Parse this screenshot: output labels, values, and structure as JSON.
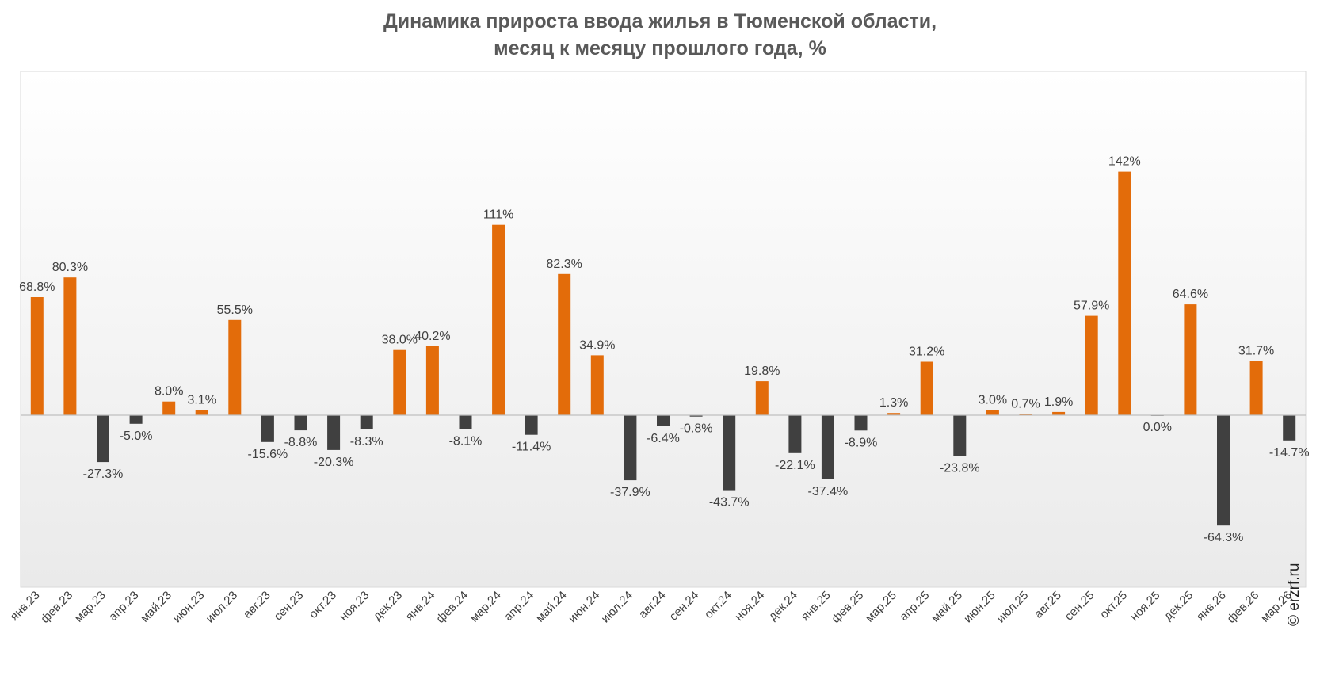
{
  "title_line1": "Динамика прироста ввода жилья в Тюменской области,",
  "title_line2": "месяц к месяцу прошлого года, %",
  "credit": "© erzrf.ru",
  "colors": {
    "positive": "#e36c0a",
    "negative": "#404040",
    "text": "#404040"
  },
  "chart_data": {
    "type": "bar",
    "categories": [
      "янв.23",
      "фев.23",
      "мар.23",
      "апр.23",
      "май.23",
      "июн.23",
      "июл.23",
      "авг.23",
      "сен.23",
      "окт.23",
      "ноя.23",
      "дек.23",
      "янв.24",
      "фев.24",
      "мар.24",
      "апр.24",
      "май.24",
      "июн.24",
      "июл.24",
      "авг.24",
      "сен.24",
      "окт.24",
      "ноя.24",
      "дек.24",
      "янв.25",
      "фев.25",
      "мар.25",
      "апр.25",
      "май.25",
      "июн.25",
      "июл.25",
      "авг.25",
      "сен.25",
      "окт.25",
      "ноя.25",
      "дек.25",
      "янв.26",
      "фев.26",
      "мар.26"
    ],
    "values": [
      68.8,
      80.3,
      -27.3,
      -5.0,
      8.0,
      3.1,
      55.5,
      -15.6,
      -8.8,
      -20.3,
      -8.3,
      38.0,
      40.2,
      -8.1,
      111,
      -11.4,
      82.3,
      34.9,
      -37.9,
      -6.4,
      -0.8,
      -43.7,
      19.8,
      -22.1,
      -37.4,
      -8.9,
      1.3,
      31.2,
      -23.8,
      3.0,
      0.7,
      1.9,
      57.9,
      142,
      0.0,
      64.6,
      -64.3,
      31.7,
      -14.7
    ],
    "labels": [
      "68.8%",
      "80.3%",
      "-27.3%",
      "-5.0%",
      "8.0%",
      "3.1%",
      "55.5%",
      "-15.6%",
      "-8.8%",
      "-20.3%",
      "-8.3%",
      "38.0%",
      "40.2%",
      "-8.1%",
      "111%",
      "-11.4%",
      "82.3%",
      "34.9%",
      "-37.9%",
      "-6.4%",
      "-0.8%",
      "-43.7%",
      "19.8%",
      "-22.1%",
      "-37.4%",
      "-8.9%",
      "1.3%",
      "31.2%",
      "-23.8%",
      "3.0%",
      "0.7%",
      "1.9%",
      "57.9%",
      "142%",
      "0.0%",
      "64.6%",
      "-64.3%",
      "31.7%",
      "-14.7%"
    ],
    "grid": false,
    "legend": "none"
  }
}
